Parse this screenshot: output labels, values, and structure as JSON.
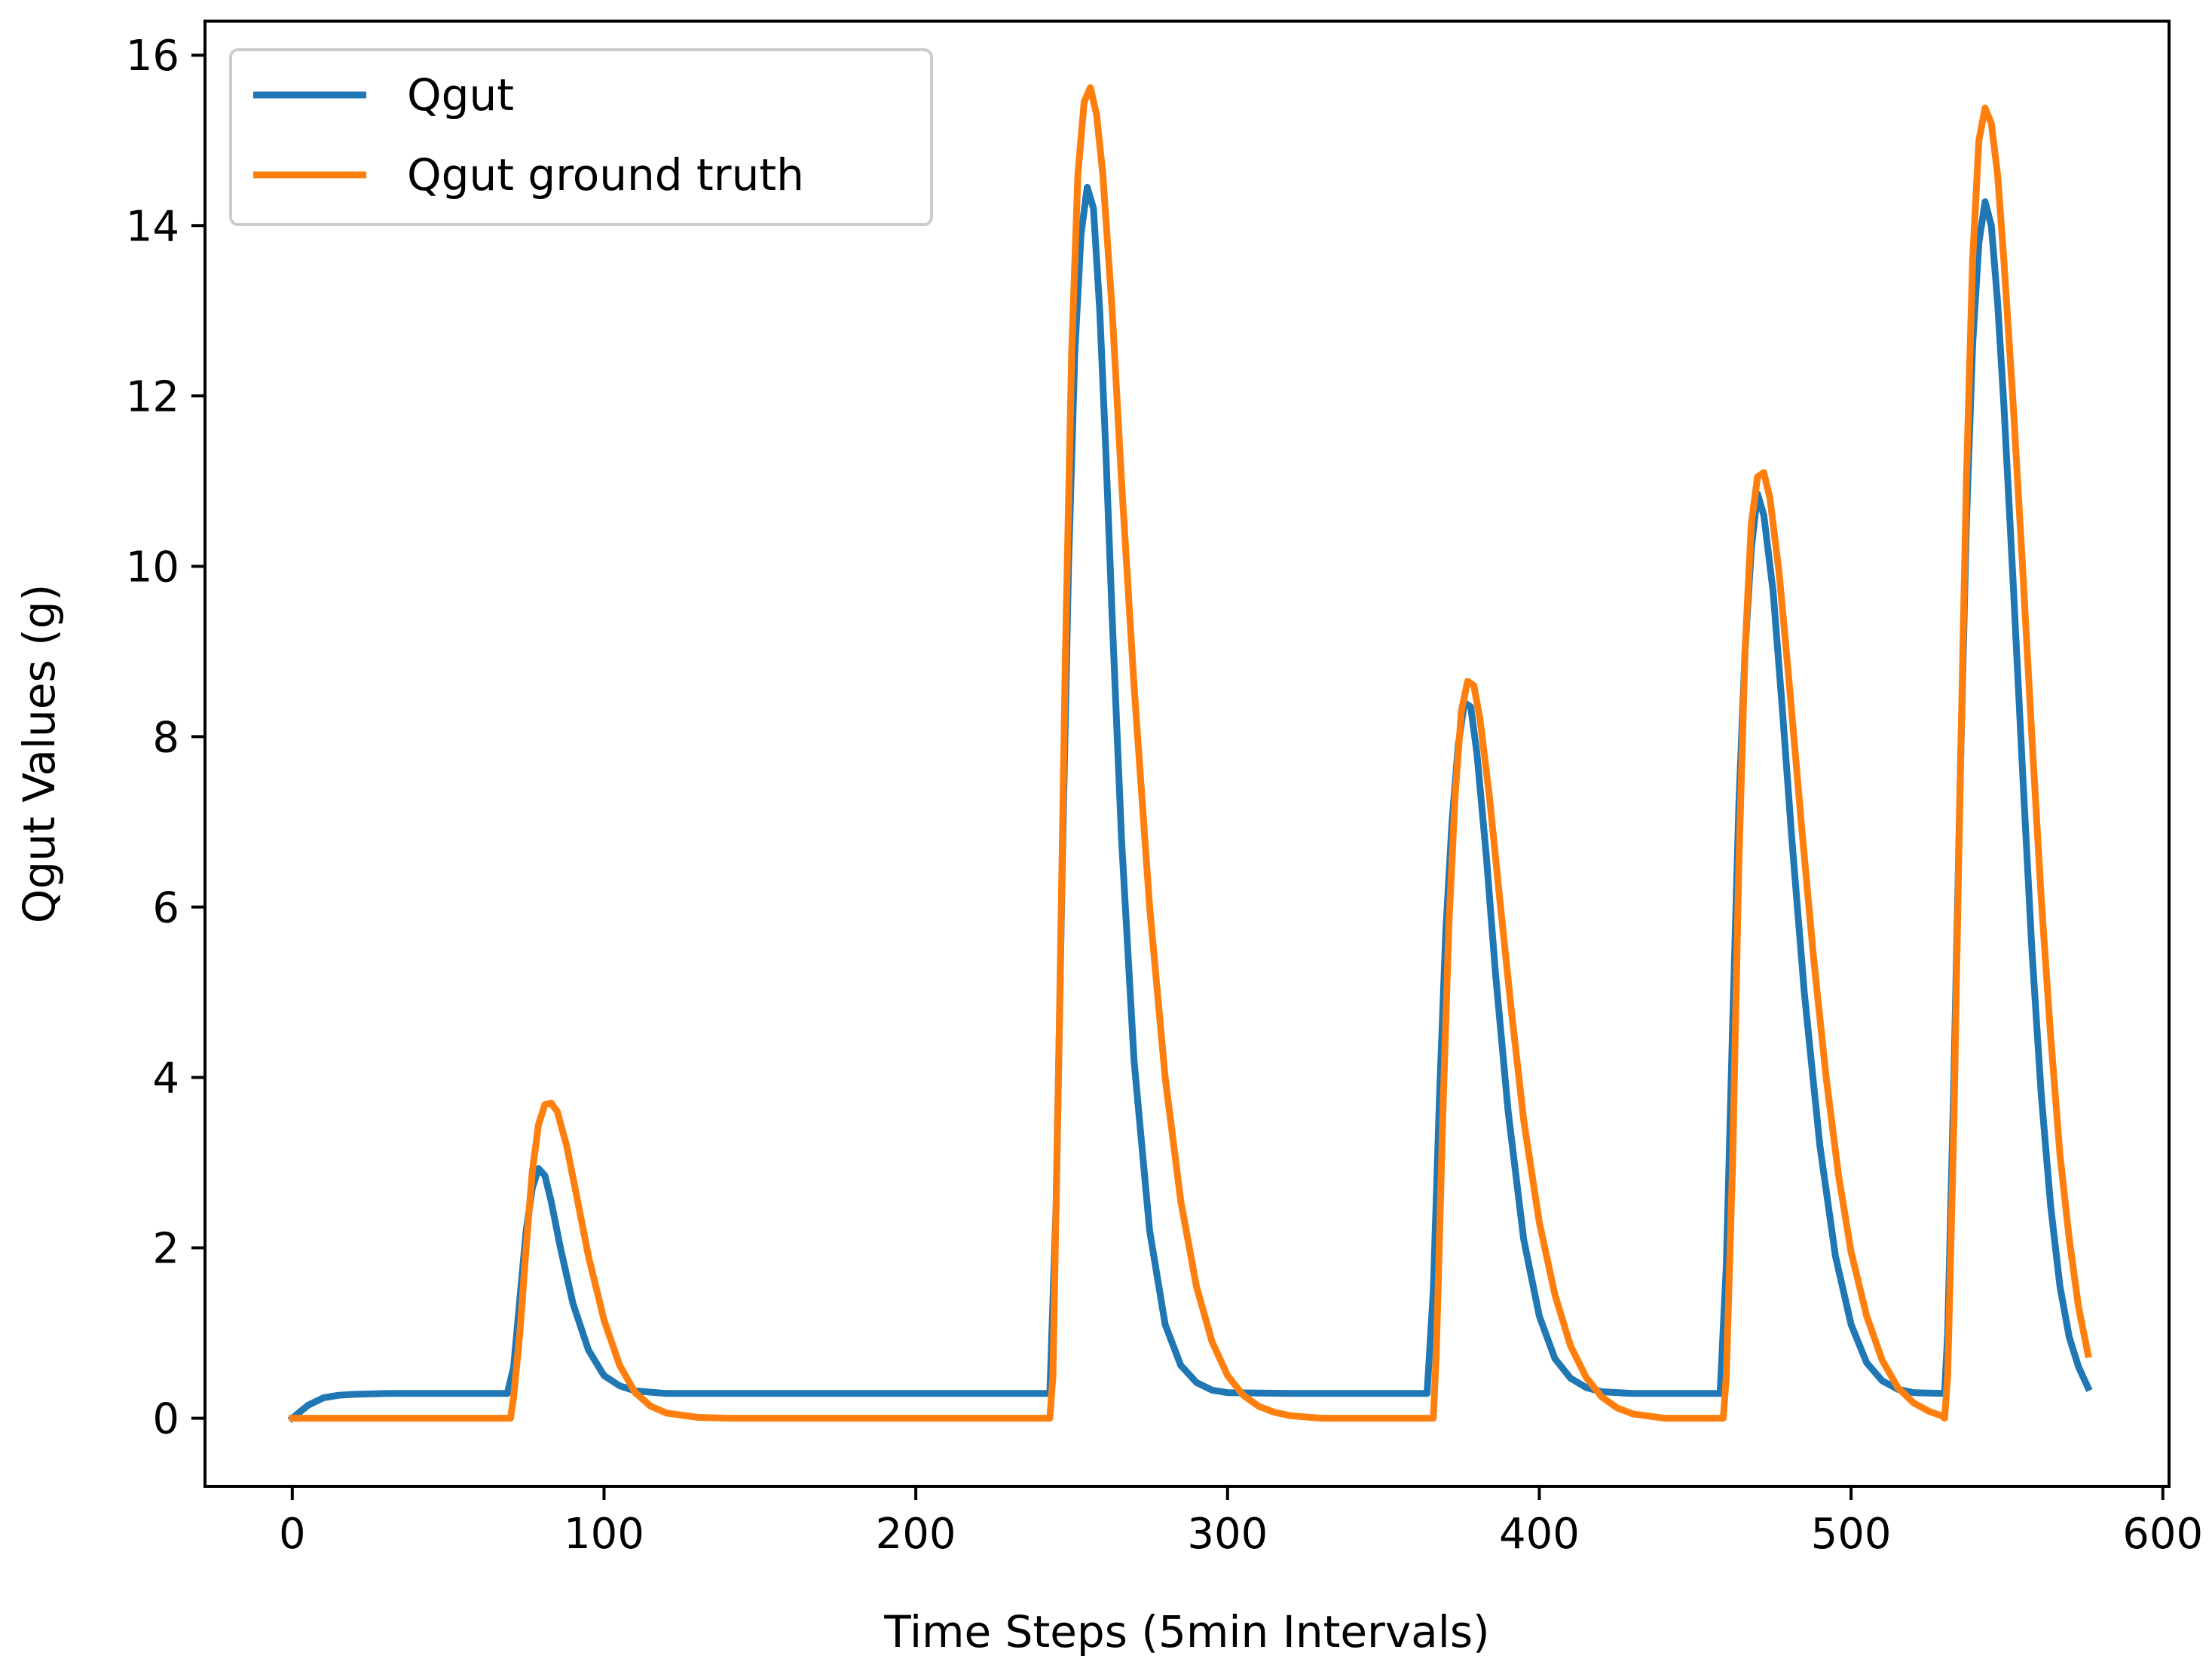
{
  "chart_data": {
    "type": "line",
    "title": "",
    "xlabel": "Time Steps (5min Intervals)",
    "ylabel": "Qgut Values (g)",
    "xlim": [
      -28,
      602
    ],
    "ylim": [
      -0.8,
      16.4
    ],
    "xticks": [
      0,
      100,
      200,
      300,
      400,
      500,
      600
    ],
    "yticks": [
      0,
      2,
      4,
      6,
      8,
      10,
      12,
      14,
      16
    ],
    "grid": false,
    "legend_position": "top-left",
    "series": [
      {
        "name": "Qgut",
        "color": "#1f77b4",
        "points": [
          [
            0,
            0.0
          ],
          [
            5,
            0.15
          ],
          [
            10,
            0.24
          ],
          [
            15,
            0.27
          ],
          [
            20,
            0.28
          ],
          [
            30,
            0.29
          ],
          [
            50,
            0.29
          ],
          [
            69,
            0.29
          ],
          [
            71,
            0.6
          ],
          [
            73,
            1.4
          ],
          [
            75,
            2.2
          ],
          [
            77,
            2.7
          ],
          [
            79,
            2.93
          ],
          [
            81,
            2.85
          ],
          [
            83,
            2.55
          ],
          [
            86,
            2.0
          ],
          [
            90,
            1.35
          ],
          [
            95,
            0.8
          ],
          [
            100,
            0.5
          ],
          [
            105,
            0.38
          ],
          [
            110,
            0.32
          ],
          [
            120,
            0.29
          ],
          [
            160,
            0.29
          ],
          [
            200,
            0.29
          ],
          [
            243,
            0.29
          ],
          [
            245,
            2.5
          ],
          [
            247,
            6.5
          ],
          [
            249,
            10.0
          ],
          [
            251,
            12.5
          ],
          [
            253,
            13.9
          ],
          [
            255,
            14.45
          ],
          [
            257,
            14.2
          ],
          [
            259,
            13.0
          ],
          [
            261,
            11.3
          ],
          [
            263,
            9.4
          ],
          [
            266,
            6.8
          ],
          [
            270,
            4.2
          ],
          [
            275,
            2.2
          ],
          [
            280,
            1.1
          ],
          [
            285,
            0.62
          ],
          [
            290,
            0.42
          ],
          [
            295,
            0.33
          ],
          [
            300,
            0.3
          ],
          [
            320,
            0.29
          ],
          [
            350,
            0.29
          ],
          [
            364,
            0.29
          ],
          [
            366,
            1.5
          ],
          [
            368,
            3.8
          ],
          [
            370,
            5.7
          ],
          [
            372,
            7.0
          ],
          [
            374,
            7.9
          ],
          [
            376,
            8.4
          ],
          [
            378,
            8.35
          ],
          [
            380,
            7.8
          ],
          [
            383,
            6.6
          ],
          [
            386,
            5.2
          ],
          [
            390,
            3.6
          ],
          [
            395,
            2.1
          ],
          [
            400,
            1.2
          ],
          [
            405,
            0.7
          ],
          [
            410,
            0.47
          ],
          [
            415,
            0.36
          ],
          [
            420,
            0.31
          ],
          [
            430,
            0.29
          ],
          [
            458,
            0.29
          ],
          [
            460,
            1.8
          ],
          [
            462,
            4.6
          ],
          [
            464,
            7.2
          ],
          [
            466,
            9.0
          ],
          [
            468,
            10.2
          ],
          [
            470,
            10.85
          ],
          [
            472,
            10.6
          ],
          [
            475,
            9.7
          ],
          [
            478,
            8.3
          ],
          [
            481,
            6.8
          ],
          [
            485,
            5.0
          ],
          [
            490,
            3.2
          ],
          [
            495,
            1.9
          ],
          [
            500,
            1.1
          ],
          [
            505,
            0.65
          ],
          [
            510,
            0.44
          ],
          [
            515,
            0.34
          ],
          [
            520,
            0.3
          ],
          [
            530,
            0.29
          ],
          [
            531,
            1.0
          ],
          [
            533,
            4.0
          ],
          [
            535,
            7.5
          ],
          [
            537,
            10.5
          ],
          [
            539,
            12.6
          ],
          [
            541,
            13.8
          ],
          [
            543,
            14.28
          ],
          [
            545,
            14.0
          ],
          [
            547,
            13.1
          ],
          [
            549,
            11.9
          ],
          [
            552,
            9.8
          ],
          [
            555,
            7.6
          ],
          [
            558,
            5.5
          ],
          [
            561,
            3.8
          ],
          [
            564,
            2.5
          ],
          [
            567,
            1.55
          ],
          [
            570,
            0.95
          ],
          [
            573,
            0.6
          ],
          [
            576,
            0.36
          ]
        ]
      },
      {
        "name": "Qgut ground truth",
        "color": "#ff7f0e",
        "points": [
          [
            0,
            0.0
          ],
          [
            30,
            0.0
          ],
          [
            60,
            0.0
          ],
          [
            70,
            0.0
          ],
          [
            71,
            0.25
          ],
          [
            73,
            1.0
          ],
          [
            75,
            2.0
          ],
          [
            77,
            2.9
          ],
          [
            79,
            3.45
          ],
          [
            81,
            3.68
          ],
          [
            83,
            3.7
          ],
          [
            85,
            3.6
          ],
          [
            88,
            3.2
          ],
          [
            91,
            2.65
          ],
          [
            95,
            1.9
          ],
          [
            100,
            1.15
          ],
          [
            105,
            0.62
          ],
          [
            110,
            0.3
          ],
          [
            115,
            0.14
          ],
          [
            120,
            0.06
          ],
          [
            130,
            0.01
          ],
          [
            140,
            0.0
          ],
          [
            200,
            0.0
          ],
          [
            243,
            0.0
          ],
          [
            244,
            0.5
          ],
          [
            246,
            4.5
          ],
          [
            248,
            9.0
          ],
          [
            250,
            12.5
          ],
          [
            252,
            14.6
          ],
          [
            254,
            15.45
          ],
          [
            256,
            15.62
          ],
          [
            258,
            15.3
          ],
          [
            260,
            14.6
          ],
          [
            263,
            13.0
          ],
          [
            266,
            11.0
          ],
          [
            270,
            8.6
          ],
          [
            275,
            6.0
          ],
          [
            280,
            4.0
          ],
          [
            285,
            2.55
          ],
          [
            290,
            1.55
          ],
          [
            295,
            0.9
          ],
          [
            300,
            0.5
          ],
          [
            305,
            0.27
          ],
          [
            310,
            0.14
          ],
          [
            315,
            0.07
          ],
          [
            320,
            0.03
          ],
          [
            330,
            0.0
          ],
          [
            366,
            0.0
          ],
          [
            367,
            0.8
          ],
          [
            369,
            3.5
          ],
          [
            371,
            5.8
          ],
          [
            373,
            7.3
          ],
          [
            375,
            8.3
          ],
          [
            377,
            8.65
          ],
          [
            379,
            8.6
          ],
          [
            381,
            8.2
          ],
          [
            384,
            7.3
          ],
          [
            387,
            6.2
          ],
          [
            391,
            4.8
          ],
          [
            395,
            3.5
          ],
          [
            400,
            2.3
          ],
          [
            405,
            1.45
          ],
          [
            410,
            0.85
          ],
          [
            415,
            0.48
          ],
          [
            420,
            0.25
          ],
          [
            425,
            0.12
          ],
          [
            430,
            0.05
          ],
          [
            440,
            0.0
          ],
          [
            459,
            0.0
          ],
          [
            460,
            0.5
          ],
          [
            462,
            3.0
          ],
          [
            464,
            6.5
          ],
          [
            466,
            9.0
          ],
          [
            468,
            10.5
          ],
          [
            470,
            11.05
          ],
          [
            472,
            11.1
          ],
          [
            474,
            10.8
          ],
          [
            477,
            9.9
          ],
          [
            480,
            8.7
          ],
          [
            484,
            7.0
          ],
          [
            488,
            5.4
          ],
          [
            492,
            4.0
          ],
          [
            496,
            2.85
          ],
          [
            500,
            1.95
          ],
          [
            505,
            1.2
          ],
          [
            510,
            0.68
          ],
          [
            515,
            0.36
          ],
          [
            520,
            0.18
          ],
          [
            525,
            0.08
          ],
          [
            529,
            0.03
          ],
          [
            530,
            0.0
          ],
          [
            531,
            0.5
          ],
          [
            533,
            3.5
          ],
          [
            535,
            7.5
          ],
          [
            537,
            11.0
          ],
          [
            539,
            13.6
          ],
          [
            541,
            15.0
          ],
          [
            543,
            15.38
          ],
          [
            545,
            15.2
          ],
          [
            547,
            14.6
          ],
          [
            549,
            13.6
          ],
          [
            552,
            11.9
          ],
          [
            555,
            10.0
          ],
          [
            558,
            8.0
          ],
          [
            561,
            6.1
          ],
          [
            564,
            4.5
          ],
          [
            567,
            3.1
          ],
          [
            570,
            2.1
          ],
          [
            573,
            1.3
          ],
          [
            576,
            0.75
          ]
        ]
      }
    ]
  }
}
